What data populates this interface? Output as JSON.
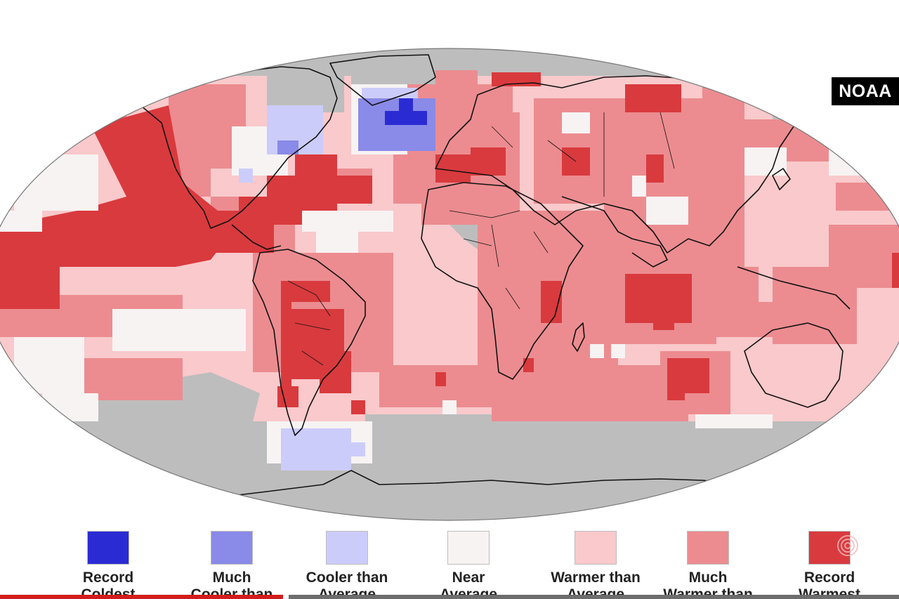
{
  "badge": {
    "text": "NOAA"
  },
  "map": {
    "projection": "robinson-like",
    "colors": {
      "no_data": "#bdbdbd",
      "record_coldest": "#2b2bd4",
      "much_cooler": "#8a8ae8",
      "cooler": "#ccccfa",
      "near_average": "#f7f3f3",
      "warmer": "#f9c9cb",
      "much_warmer": "#ec8c90",
      "record_warmest": "#d93a3e",
      "coastline": "#111111"
    }
  },
  "legend": {
    "items": [
      {
        "label": "Record\nColdest",
        "color": "#2b2bd4"
      },
      {
        "label": "Much\nCooler than",
        "color": "#8a8ae8"
      },
      {
        "label": "Cooler than\nAverage",
        "color": "#ccccfa"
      },
      {
        "label": "Near\nAverage",
        "color": "#f7f3f3"
      },
      {
        "label": "Warmer than\nAverage",
        "color": "#f9c9cb"
      },
      {
        "label": "Much\nWarmer than",
        "color": "#ec8c90"
      },
      {
        "label": "Record\nWarmest",
        "color": "#d93a3e"
      }
    ]
  },
  "player": {
    "progress": 0.315,
    "played_color": "#d31c1c",
    "remaining_color": "#6d6d6d",
    "replay_icon": "replay-icon"
  }
}
